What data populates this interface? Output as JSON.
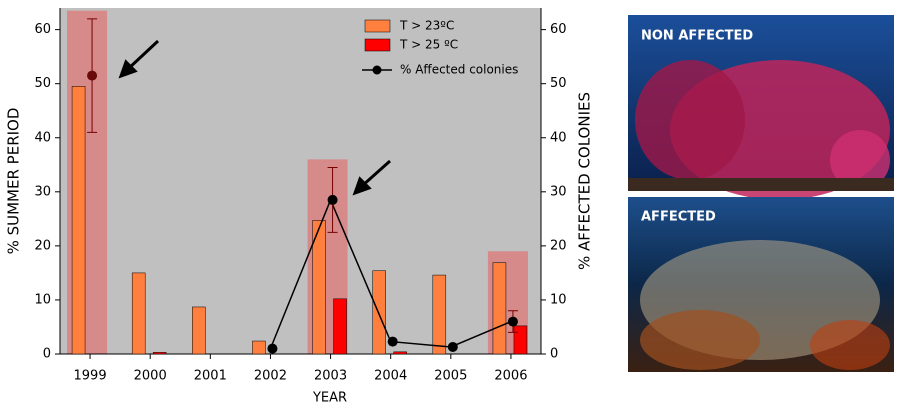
{
  "chart_data": {
    "type": "bar-line",
    "categories": [
      "1999",
      "2000",
      "2001",
      "2002",
      "2003",
      "2004",
      "2005",
      "2006"
    ],
    "x_label": "YEAR",
    "y_label": "% SUMMER PERIOD",
    "y2_label": "% AFFECTED COLONIES",
    "ylim": [
      0,
      64
    ],
    "yticks": [
      0,
      10,
      20,
      30,
      40,
      50,
      60
    ],
    "y2lim": [
      0,
      64
    ],
    "y2ticks": [
      0,
      10,
      20,
      30,
      40,
      50,
      60
    ],
    "highlight_boxes": {
      "color": "#d98080",
      "values": [
        63.5,
        null,
        null,
        null,
        36,
        null,
        null,
        19
      ]
    },
    "series": [
      {
        "name": "T > 23ºC",
        "type": "bar",
        "color": "#ff7f3f",
        "values": [
          49.5,
          15,
          8.7,
          2.4,
          24.7,
          15.4,
          14.6,
          16.9
        ]
      },
      {
        "name": "T > 25 ºC",
        "type": "bar",
        "color": "#ff0000",
        "values": [
          0,
          0.3,
          0,
          0,
          10.2,
          0.4,
          0,
          5.2
        ]
      },
      {
        "name": "% Affected colonies",
        "type": "line",
        "axis": "y2",
        "color": "#000000",
        "values": [
          51.5,
          null,
          null,
          1,
          28.5,
          2.3,
          1.3,
          6
        ],
        "errors": [
          10.5,
          null,
          null,
          null,
          6,
          null,
          null,
          2
        ]
      }
    ],
    "legend": "top-right"
  },
  "photos": [
    {
      "label": "NON AFFECTED"
    },
    {
      "label": "AFFECTED"
    }
  ]
}
